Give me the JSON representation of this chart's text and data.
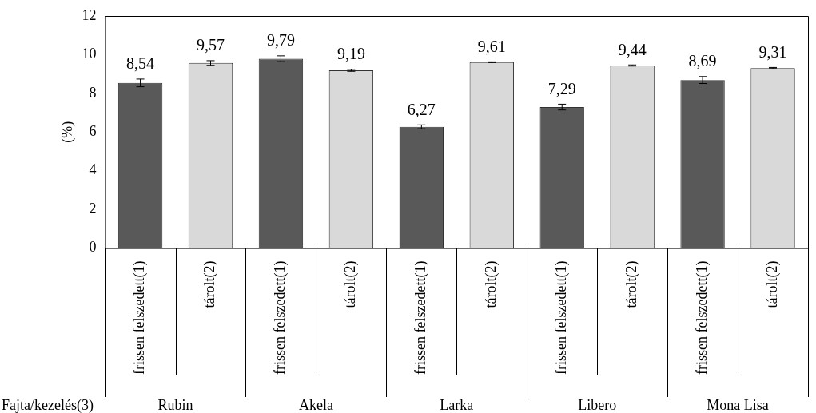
{
  "chart_data": {
    "type": "bar",
    "ylabel": "(%)",
    "categories": [
      "frissen felszedett(1)",
      "tárolt(2)",
      "frissen felszedett(1)",
      "tárolt(2)",
      "frissen felszedett(1)",
      "tárolt(2)",
      "frissen felszedett(1)",
      "tárolt(2)",
      "frissen felszedett(1)",
      "tárolt(2)"
    ],
    "values": [
      8.54,
      9.57,
      9.79,
      9.19,
      6.27,
      9.61,
      7.29,
      9.44,
      8.69,
      9.31
    ],
    "errors": [
      0.2,
      0.12,
      0.15,
      0.05,
      0.1,
      0.02,
      0.15,
      0.03,
      0.18,
      0.03
    ],
    "colors": [
      "#595959",
      "#d9d9d9",
      "#595959",
      "#d9d9d9",
      "#595959",
      "#d9d9d9",
      "#595959",
      "#d9d9d9",
      "#595959",
      "#d9d9d9"
    ],
    "value_labels": [
      "8,54",
      "9,57",
      "9,79",
      "9,19",
      "6,27",
      "9,61",
      "7,29",
      "9,44",
      "8,69",
      "9,31"
    ],
    "annotations": [
      "Fajta/kezelés(3)",
      "Rubin",
      "Akela",
      "Larka",
      "Libero",
      "Mona Lisa"
    ],
    "ylim": [
      0,
      12
    ],
    "yticks": [
      0,
      2,
      4,
      6,
      8,
      10,
      12
    ],
    "grid": false,
    "legend": false
  }
}
